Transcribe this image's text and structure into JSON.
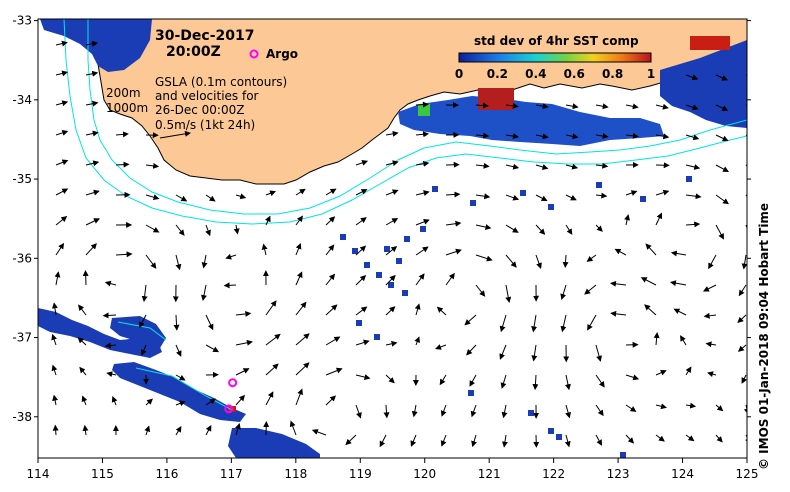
{
  "title": {
    "date": "30-Dec-2017",
    "time": "20:00Z"
  },
  "legend": {
    "argo_label": "Argo",
    "gsla_lines": [
      "GSLA (0.1m contours)",
      "and velocities for",
      "26-Dec 00:00Z",
      "0.5m/s (1kt 24h)"
    ],
    "depth_200": "200m",
    "depth_1000": "1000m",
    "colorbar_title": "std dev of 4hr SST comp",
    "colorbar_ticks": [
      "0",
      "0.2",
      "0.4",
      "0.6",
      "0.8",
      "1"
    ]
  },
  "axes": {
    "x_ticks": [
      "114",
      "115",
      "116",
      "117",
      "118",
      "119",
      "120",
      "121",
      "122",
      "123",
      "124",
      "125"
    ],
    "y_ticks": [
      "-33",
      "-34",
      "-35",
      "-36",
      "-37",
      "-38"
    ]
  },
  "credit": "© IMOS 01-Jan-2018 09:04 Hobart Time",
  "colors": {
    "land": "#fcc896",
    "isobath": "#00e5e5",
    "argo": "#ff00ff",
    "sst_low": "#0a1e9a",
    "sst_mid": "#1e7be6",
    "sst_high": "#c81e14"
  },
  "argo_floats": [
    {
      "lon": 117.02,
      "lat": -37.57
    },
    {
      "lon": 116.96,
      "lat": -37.9
    }
  ]
}
